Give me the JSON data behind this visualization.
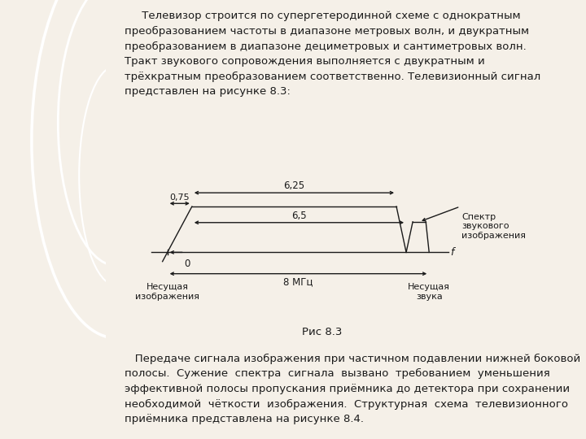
{
  "bg_color": "#f5f0e8",
  "left_panel_color": "#e8dfc8",
  "text_color": "#1a1a1a",
  "line_color": "#1a1a1a",
  "top_text": "     Телевизор строится по супергетеродинной схеме с однократным\nпреобразованием частоты в диапазоне метровых волн, и двукратным\nпреобразованием в диапазоне дециметровых и сантиметровых волн.\nТракт звукового сопровождения выполняется с двукратным и\nтрёхкратным преобразованием соответственно. Телевизионный сигнал\nпредставлен на рисунке 8.3:",
  "bottom_text": "   Передаче сигнала изображения при частичном подавлении нижней боковой\nполосы.  Сужение  спектра  сигнала  вызвано  требованием  уменьшения\nэффективной полосы пропускания приёмника до детектора при сохранении\nнеобходимой  чёткости  изображения.  Структурная  схема  телевизионного\nприёмника представлена на рисунке 8.4.",
  "fig_caption": "Рис 8.3",
  "label_625": "6,25",
  "label_65": "6,5",
  "label_075": "0,75",
  "label_0": "0",
  "label_f": "f",
  "label_8MHz": "8 МГц",
  "label_carrier_img": "Несущая\nизображения",
  "label_carrier_sound": "Несущая\nзвука",
  "label_spectrum": "Спектр\nзвукового\nизображения"
}
